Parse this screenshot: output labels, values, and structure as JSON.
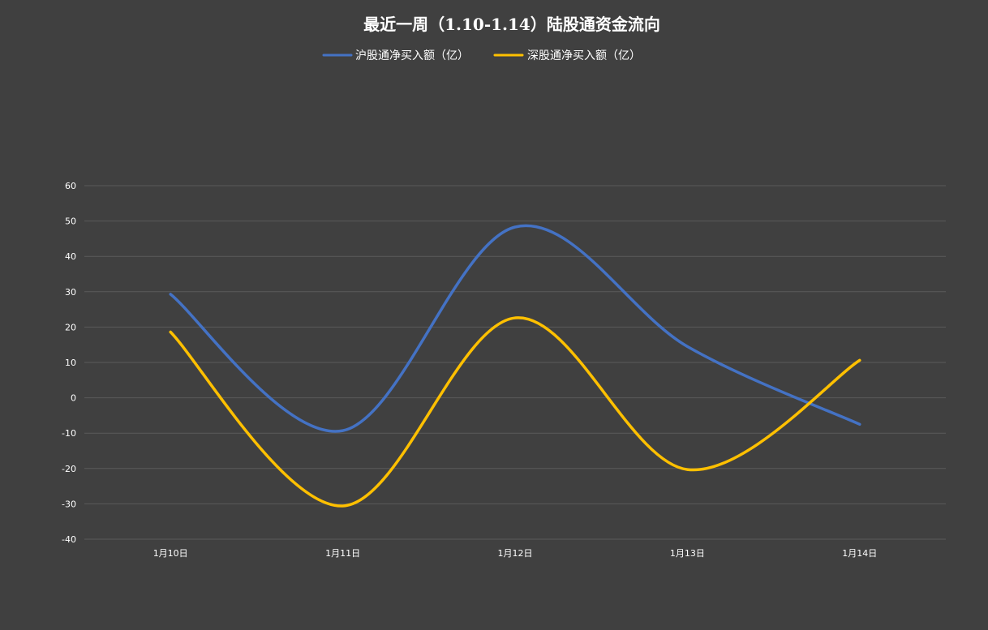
{
  "chart_data": {
    "type": "line",
    "title": "最近一周（1.10-1.14）陆股通资金流向",
    "categories": [
      "1月10日",
      "1月11日",
      "1月12日",
      "1月13日",
      "1月14日"
    ],
    "series": [
      {
        "name": "沪股通净买入额（亿）",
        "values": [
          29.3,
          -9.3,
          48.3,
          14.5,
          -7.5
        ],
        "color": "#4472C4"
      },
      {
        "name": "深股通净买入额（亿）",
        "values": [
          18.6,
          -30.6,
          22.6,
          -20.3,
          10.6
        ],
        "color": "#FFC000"
      }
    ],
    "ylim": [
      -40,
      60
    ],
    "yticks": [
      "60",
      "50",
      "40",
      "30",
      "20",
      "10",
      "0",
      "-10",
      "-20",
      "-30",
      "-40"
    ],
    "smooth": true,
    "grid": true,
    "legend_position": "top"
  }
}
